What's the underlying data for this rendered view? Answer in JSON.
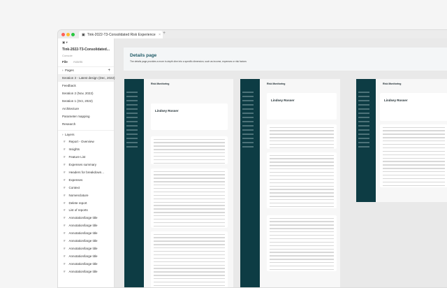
{
  "browser": {
    "tab_title": "Tink-2022-T3-Consolidated Risk Experience",
    "new_tab": "+"
  },
  "file": {
    "name": "Tink-2022-T3-Consolidated...",
    "subtitle": "Console",
    "tabs": [
      "File",
      "Assets"
    ]
  },
  "pages": {
    "header": "Pages",
    "add": "+",
    "items": [
      "Iteration 3 - Latest design (Dec, 2022)",
      "Feedback",
      "Iteration 2 (Nov, 2022)",
      "Iteration 1 (Oct, 2022)",
      "Architecture",
      "Parameter mapping",
      "Research"
    ]
  },
  "layers": {
    "header": "Layers",
    "items": [
      "Report - Overview",
      "Insights",
      "Feature List",
      "Expenses summary",
      "Headers for breakdown...",
      "Expenses",
      "Context",
      "Nomenclature",
      "Delete report",
      "List of reports",
      "Annotation/large title",
      "Annotation/large title",
      "Annotation/large title",
      "Annotation/large title",
      "Annotation/large title",
      "Annotation/large title",
      "Annotation/large title",
      "Annotation/large title"
    ]
  },
  "canvas": {
    "title": "Details page",
    "description": "The details page provides a more in-depth dive into a specific dimension, such as income, expenses or risk factors",
    "frame_title": "Risk Monitoring",
    "person": "Lindsey Rosser"
  },
  "colors": {
    "sidebar": "#0d3c44",
    "accent": "#1e5a66"
  }
}
